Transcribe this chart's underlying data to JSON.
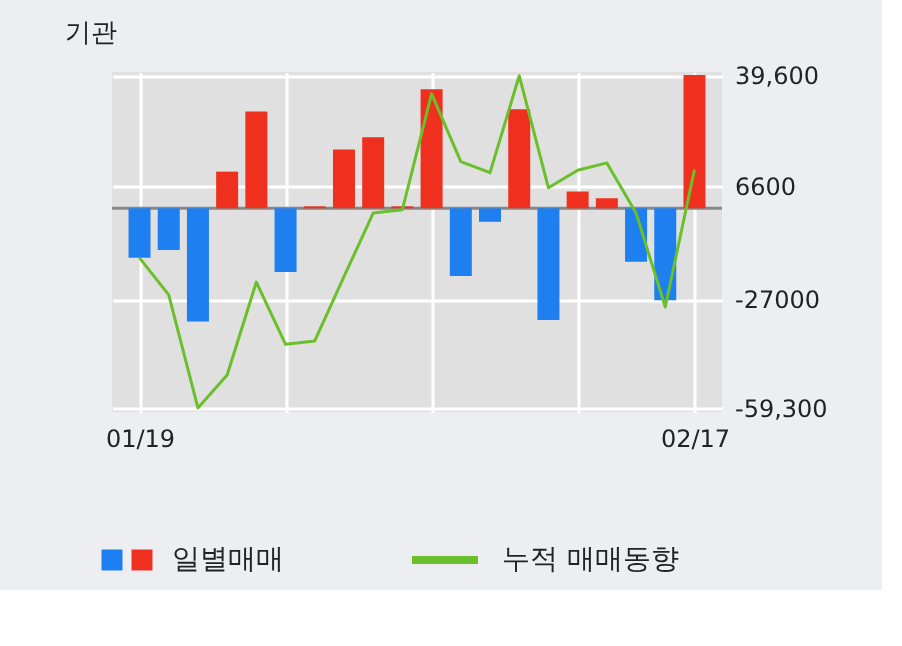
{
  "chart_data": {
    "type": "bar",
    "title": "기관",
    "categories": [
      "01/19",
      null,
      null,
      null,
      null,
      null,
      null,
      null,
      null,
      null,
      null,
      null,
      null,
      null,
      null,
      null,
      null,
      null,
      null,
      "02/17"
    ],
    "series": [
      {
        "name": "일별매매",
        "colors": [
          "#1e7ff0",
          "#1e7ff0",
          "#1e7ff0",
          "#f0301e",
          "#f0301e",
          "#1e7ff0",
          "#f0301e",
          "#f0301e",
          "#f0301e",
          "#f0301e",
          "#f0301e",
          "#1e7ff0",
          "#1e7ff0",
          "#f0301e",
          "#1e7ff0",
          "#f0301e",
          "#f0301e",
          "#1e7ff0",
          "#1e7ff0",
          "#f0301e"
        ],
        "values": [
          -14700,
          -12400,
          -33600,
          10900,
          28800,
          -18900,
          600,
          17500,
          21100,
          600,
          35400,
          -20100,
          -4000,
          29400,
          -33200,
          5000,
          3000,
          -15900,
          -27300,
          39600
        ]
      },
      {
        "name": "누적 매매동향",
        "type": "line",
        "color": "#6abf2a",
        "values": [
          -14700,
          -25700,
          -59300,
          -49500,
          -21900,
          -40400,
          -39400,
          -20300,
          -1400,
          -400,
          34000,
          13900,
          10600,
          39400,
          6100,
          11300,
          13500,
          -1400,
          -29300,
          11500
        ]
      }
    ],
    "ylim": [
      -60500,
      40500
    ],
    "yticks": [
      {
        "value": 39600,
        "label": "39,600"
      },
      6600,
      -27000,
      {
        "value": -59300,
        "label": "-59,300"
      }
    ],
    "ref_lines": [
      {
        "axis": "y",
        "value": 0,
        "color": "#888888"
      }
    ],
    "grid": true,
    "legend": "bottom"
  }
}
